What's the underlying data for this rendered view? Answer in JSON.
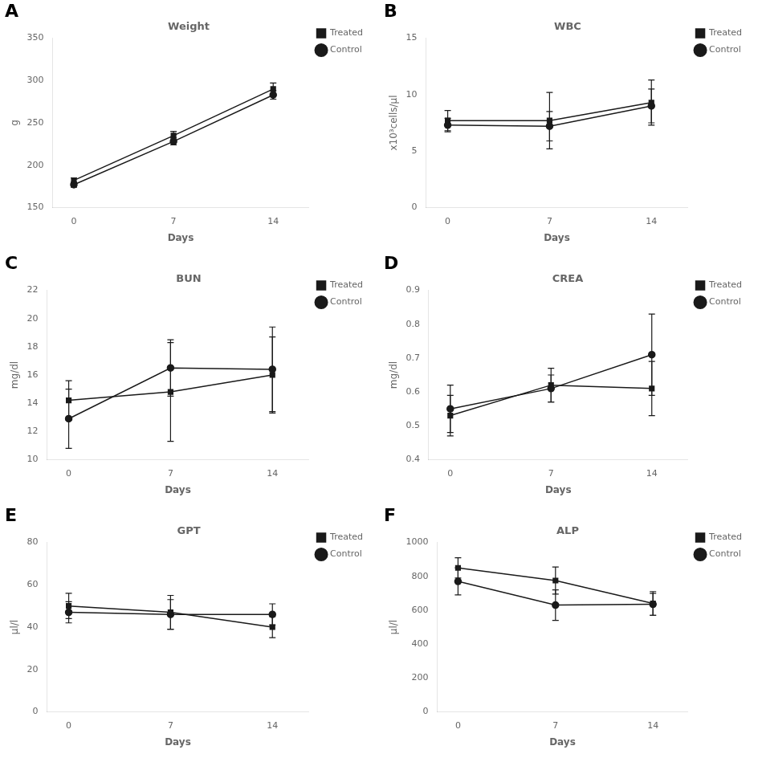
{
  "chart_data": [
    {
      "type": "line",
      "title": "Weight",
      "annotations": [
        "A"
      ],
      "xlabel": "Days",
      "ylabel": "g",
      "x": [
        0,
        7,
        14
      ],
      "xlim": [
        -1.5,
        16.5
      ],
      "xticks": [
        0,
        7,
        14
      ],
      "ylim": [
        150,
        350
      ],
      "yticks": [
        150,
        200,
        250,
        300,
        350
      ],
      "grid": false,
      "legend": "right",
      "series": [
        {
          "name": "Treated",
          "color": "#1a1a1a",
          "marker": "square",
          "values": [
            182,
            235,
            290
          ],
          "error": [
            3,
            5,
            7
          ]
        },
        {
          "name": "Control",
          "color": "#1a1a1a",
          "marker": "circle",
          "values": [
            177,
            228,
            283
          ],
          "error": [
            3,
            4,
            5
          ]
        }
      ]
    },
    {
      "type": "line",
      "title": "WBC",
      "annotations": [
        "B"
      ],
      "xlabel": "Days",
      "ylabel": "x10³cells/μl",
      "x": [
        0,
        7,
        14
      ],
      "xlim": [
        -1.5,
        16.5
      ],
      "xticks": [
        0,
        7,
        14
      ],
      "ylim": [
        0,
        15
      ],
      "yticks": [
        0,
        5,
        10,
        15
      ],
      "grid": false,
      "legend": "right",
      "series": [
        {
          "name": "Treated",
          "color": "#1a1a1a",
          "marker": "square",
          "values": [
            7.7,
            7.7,
            9.3
          ],
          "error": [
            0.9,
            2.5,
            2.0
          ]
        },
        {
          "name": "Control",
          "color": "#1a1a1a",
          "marker": "circle",
          "values": [
            7.3,
            7.2,
            9.0
          ],
          "error": [
            0.6,
            1.3,
            1.5
          ]
        }
      ]
    },
    {
      "type": "line",
      "title": "BUN",
      "annotations": [
        "C"
      ],
      "xlabel": "Days",
      "ylabel": "mg/dl",
      "x": [
        0,
        7,
        14
      ],
      "xlim": [
        -1.5,
        16.5
      ],
      "xticks": [
        0,
        7,
        14
      ],
      "ylim": [
        10,
        22
      ],
      "yticks": [
        10,
        12,
        14,
        16,
        18,
        20,
        22
      ],
      "grid": false,
      "legend": "right",
      "series": [
        {
          "name": "Treated",
          "color": "#1a1a1a",
          "marker": "square",
          "values": [
            14.2,
            14.8,
            16.0
          ],
          "error": [
            1.4,
            3.5,
            2.7
          ]
        },
        {
          "name": "Control",
          "color": "#1a1a1a",
          "marker": "circle",
          "values": [
            12.9,
            16.5,
            16.4
          ],
          "error": [
            2.1,
            2.0,
            3.0
          ]
        }
      ]
    },
    {
      "type": "line",
      "title": "CREA",
      "annotations": [
        "D"
      ],
      "xlabel": "Days",
      "ylabel": "mg/dl",
      "x": [
        0,
        7,
        14
      ],
      "xlim": [
        -1.5,
        16.5
      ],
      "xticks": [
        0,
        7,
        14
      ],
      "ylim": [
        0.4,
        0.9
      ],
      "yticks": [
        0.4,
        0.5,
        0.6,
        0.7,
        0.8,
        0.9
      ],
      "grid": false,
      "legend": "right",
      "series": [
        {
          "name": "Treated",
          "color": "#1a1a1a",
          "marker": "square",
          "values": [
            0.53,
            0.62,
            0.61
          ],
          "error": [
            0.06,
            0.05,
            0.08
          ]
        },
        {
          "name": "Control",
          "color": "#1a1a1a",
          "marker": "circle",
          "values": [
            0.55,
            0.61,
            0.71
          ],
          "error": [
            0.07,
            0.04,
            0.12
          ]
        }
      ]
    },
    {
      "type": "line",
      "title": "GPT",
      "annotations": [
        "E"
      ],
      "xlabel": "Days",
      "ylabel": "μl/l",
      "x": [
        0,
        7,
        14
      ],
      "xlim": [
        -1.5,
        16.5
      ],
      "xticks": [
        0,
        7,
        14
      ],
      "ylim": [
        0,
        80
      ],
      "yticks": [
        0,
        20,
        40,
        60,
        80
      ],
      "grid": false,
      "legend": "right",
      "series": [
        {
          "name": "Treated",
          "color": "#1a1a1a",
          "marker": "square",
          "values": [
            50,
            47,
            40
          ],
          "error": [
            6,
            8,
            5
          ]
        },
        {
          "name": "Control",
          "color": "#1a1a1a",
          "marker": "circle",
          "values": [
            47,
            46,
            46
          ],
          "error": [
            5,
            7,
            5
          ]
        }
      ]
    },
    {
      "type": "line",
      "title": "ALP",
      "annotations": [
        "F"
      ],
      "xlabel": "Days",
      "ylabel": "μl/l",
      "x": [
        0,
        7,
        14
      ],
      "xlim": [
        -1.5,
        16.5
      ],
      "xticks": [
        0,
        7,
        14
      ],
      "ylim": [
        0,
        1000
      ],
      "yticks": [
        0,
        200,
        400,
        600,
        800,
        1000
      ],
      "grid": false,
      "legend": "right",
      "series": [
        {
          "name": "Treated",
          "color": "#1a1a1a",
          "marker": "square",
          "values": [
            850,
            775,
            640
          ],
          "error": [
            60,
            80,
            70
          ]
        },
        {
          "name": "Control",
          "color": "#1a1a1a",
          "marker": "circle",
          "values": [
            770,
            630,
            635
          ],
          "error": [
            80,
            90,
            65
          ]
        }
      ]
    }
  ]
}
